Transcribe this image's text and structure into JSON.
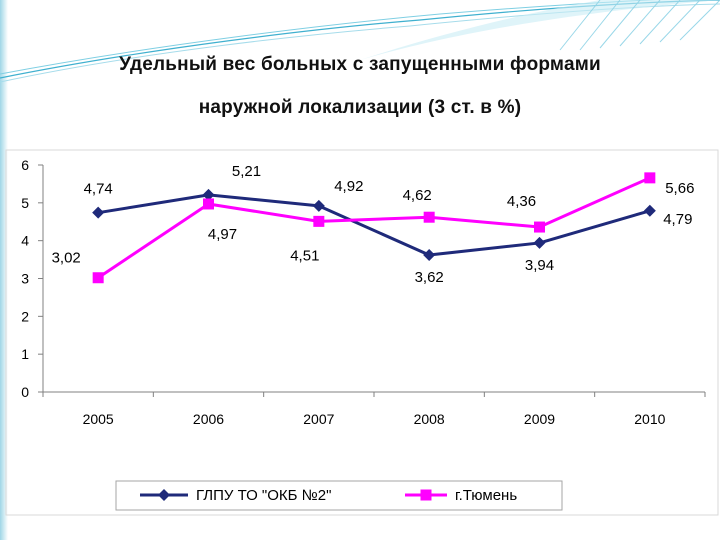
{
  "header": {
    "title_line1": "Удельный вес больных с запущенными формами",
    "title_line2": "наружной локализации (3 ст. в %)"
  },
  "chart_data": {
    "type": "line",
    "categories": [
      "2005",
      "2006",
      "2007",
      "2008",
      "2009",
      "2010"
    ],
    "ylim": [
      0,
      6
    ],
    "yticks": [
      "0",
      "1",
      "2",
      "3",
      "4",
      "5",
      "6"
    ],
    "grid": false,
    "legend_position": "bottom",
    "series": [
      {
        "name": "ГЛПУ ТО \"ОКБ №2\"",
        "values": [
          4.74,
          5.21,
          4.92,
          3.62,
          3.94,
          4.79
        ],
        "labels": [
          "4,74",
          "5,21",
          "4,92",
          "3,62",
          "3,94",
          "4,79"
        ],
        "color": "#1f2a7a",
        "marker": "diamond"
      },
      {
        "name": "г.Тюмень",
        "values": [
          3.02,
          4.97,
          4.51,
          4.62,
          4.36,
          5.66
        ],
        "labels": [
          "3,02",
          "4,97",
          "4,51",
          "4,62",
          "4,36",
          "5,66"
        ],
        "color": "#ff00ff",
        "marker": "square"
      }
    ]
  }
}
